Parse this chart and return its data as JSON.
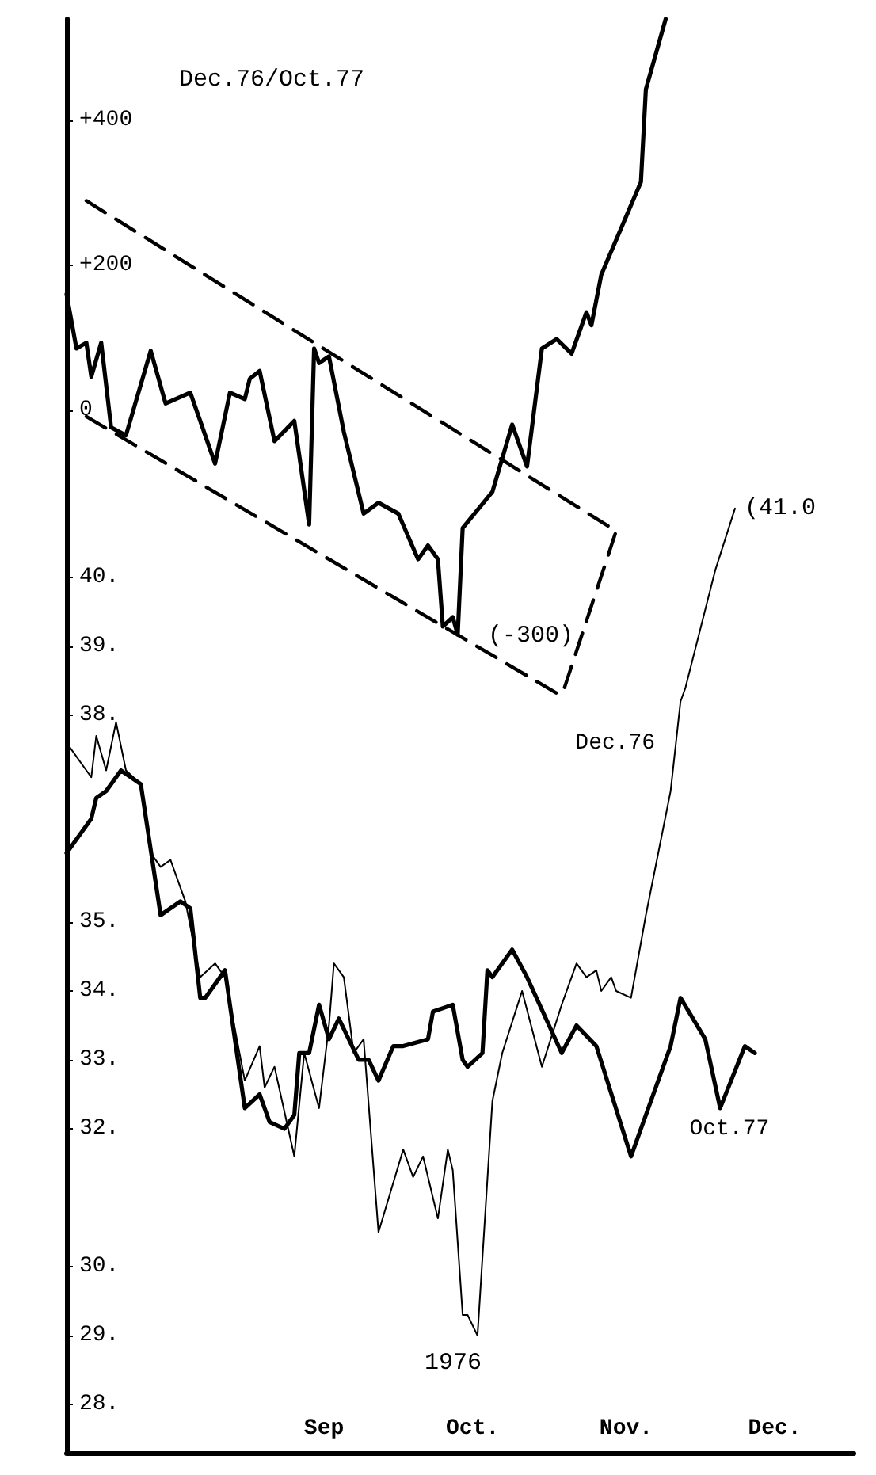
{
  "chart_data": {
    "type": "line",
    "title": "Dec.76/Oct.77",
    "annotations": [
      "(-300)",
      "1976",
      {
        "text": "(41.0",
        "x": "1976-12-07",
        "y": 41
      }
    ],
    "xlim": [
      "1976-07-25",
      "1976-12-31"
    ],
    "xticks": [
      {
        "value": "1976-09-15",
        "label": "Sep"
      },
      {
        "value": "1976-10-15",
        "label": "Oct."
      },
      {
        "value": "1976-11-15",
        "label": "Nov."
      },
      {
        "value": "1976-12-15",
        "label": "Dec."
      }
    ],
    "ylim": [
      27.3,
      48.1
    ],
    "yticks": [
      {
        "value": 28,
        "label": "28."
      },
      {
        "value": 29,
        "label": "29."
      },
      {
        "value": 30,
        "label": "30."
      },
      {
        "value": 32,
        "label": "32."
      },
      {
        "value": 33,
        "label": "33."
      },
      {
        "value": 34,
        "label": "34."
      },
      {
        "value": 35,
        "label": "35."
      },
      {
        "value": 38,
        "label": "38."
      },
      {
        "value": 39,
        "label": "39."
      },
      {
        "value": 40,
        "label": "40."
      }
    ],
    "y2lim": [
      -1440,
      540
    ],
    "y2ticks": [
      {
        "value": 0,
        "label": "0"
      },
      {
        "value": 200,
        "label": "+200"
      },
      {
        "value": 400,
        "label": "+400"
      }
    ],
    "grid": false,
    "legend": false,
    "marker": "none",
    "series": [
      {
        "axis": "y2",
        "color": "#000000",
        "x": [
          "1976-07-25",
          "1976-07-27",
          "1976-07-29",
          "1976-07-30",
          "1976-08-01",
          "1976-08-03",
          "1976-08-06",
          "1976-08-11",
          "1976-08-14",
          "1976-08-19",
          "1976-08-24",
          "1976-08-27",
          "1976-08-30",
          "1976-08-31",
          "1976-09-02",
          "1976-09-05",
          "1976-09-09",
          "1976-09-12",
          "1976-09-13",
          "1976-09-14",
          "1976-09-16",
          "1976-09-19",
          "1976-09-23",
          "1976-09-26",
          "1976-09-30",
          "1976-10-04",
          "1976-10-06",
          "1976-10-08",
          "1976-10-09",
          "1976-10-11",
          "1976-10-12",
          "1976-10-13",
          "1976-10-19",
          "1976-10-23",
          "1976-10-26",
          "1976-10-29",
          "1976-11-01",
          "1976-11-04",
          "1976-11-07",
          "1976-11-08",
          "1976-11-10",
          "1976-11-18",
          "1976-11-19",
          "1976-11-23"
        ],
        "values": [
          160,
          85,
          93,
          46,
          93,
          -24,
          -35,
          82,
          9,
          24,
          -74,
          24,
          15,
          43,
          54,
          -43,
          -15,
          -158,
          85,
          65,
          74,
          -30,
          -143,
          -128,
          -143,
          -206,
          -187,
          -206,
          -299,
          -286,
          -310,
          -163,
          -113,
          -20,
          -78,
          85,
          98,
          78,
          135,
          117,
          187,
          315,
          443,
          540
        ]
      },
      {
        "axis": "y2",
        "color": "#000000",
        "line_style": "dashed",
        "x": [
          "1976-07-29",
          "1976-11-13",
          "1976-11-02"
        ],
        "values": [
          289,
          -167,
          -395
        ]
      },
      {
        "axis": "y2",
        "color": "#000000",
        "line_style": "dashed",
        "x": [
          "1976-07-29",
          "1976-11-02"
        ],
        "values": [
          -9,
          -395
        ]
      },
      {
        "name": "Dec.76",
        "color": "#000000",
        "x": [
          "1976-07-25",
          "1976-07-30",
          "1976-07-31",
          "1976-08-02",
          "1976-08-04",
          "1976-08-06",
          "1976-08-09",
          "1976-08-11",
          "1976-08-13",
          "1976-08-15",
          "1976-08-18",
          "1976-08-21",
          "1976-08-24",
          "1976-08-26",
          "1976-08-30",
          "1976-09-02",
          "1976-09-03",
          "1976-09-05",
          "1976-09-09",
          "1976-09-11",
          "1976-09-14",
          "1976-09-16",
          "1976-09-17",
          "1976-09-19",
          "1976-09-21",
          "1976-09-23",
          "1976-09-26",
          "1976-10-01",
          "1976-10-03",
          "1976-10-05",
          "1976-10-08",
          "1976-10-10",
          "1976-10-11",
          "1976-10-13",
          "1976-10-14",
          "1976-10-16",
          "1976-10-19",
          "1976-10-21",
          "1976-10-25",
          "1976-10-29",
          "1976-11-02",
          "1976-11-05",
          "1976-11-07",
          "1976-11-09",
          "1976-11-10",
          "1976-11-12",
          "1976-11-13",
          "1976-11-16",
          "1976-11-19",
          "1976-11-24",
          "1976-11-26",
          "1976-11-27",
          "1976-12-03",
          "1976-12-07"
        ],
        "values": [
          37.6,
          37.1,
          37.7,
          37.2,
          37.9,
          37.2,
          37.0,
          36.0,
          35.8,
          35.9,
          35.3,
          34.2,
          34.4,
          34.2,
          32.7,
          33.2,
          32.6,
          32.9,
          31.6,
          33.1,
          32.3,
          33.5,
          34.4,
          34.2,
          33.1,
          33.3,
          30.5,
          31.7,
          31.3,
          31.6,
          30.7,
          31.7,
          31.4,
          29.3,
          29.3,
          29.0,
          32.4,
          33.1,
          34.0,
          32.9,
          33.8,
          34.4,
          34.2,
          34.3,
          34.0,
          34.2,
          34.0,
          33.9,
          35.1,
          36.9,
          38.2,
          38.4,
          40.1,
          41.0
        ]
      },
      {
        "name": "Oct.77",
        "color": "#000000",
        "x": [
          "1976-07-25",
          "1976-07-26",
          "1976-07-30",
          "1976-07-31",
          "1976-08-02",
          "1976-08-05",
          "1976-08-09",
          "1976-08-13",
          "1976-08-17",
          "1976-08-19",
          "1976-08-21",
          "1976-08-22",
          "1976-08-26",
          "1976-08-30",
          "1976-09-02",
          "1976-09-04",
          "1976-09-07",
          "1976-09-09",
          "1976-09-10",
          "1976-09-12",
          "1976-09-14",
          "1976-09-16",
          "1976-09-18",
          "1976-09-22",
          "1976-09-24",
          "1976-09-26",
          "1976-09-29",
          "1976-10-01",
          "1976-10-06",
          "1976-10-07",
          "1976-10-11",
          "1976-10-13",
          "1976-10-14",
          "1976-10-17",
          "1976-10-18",
          "1976-10-19",
          "1976-10-23",
          "1976-10-26",
          "1976-11-02",
          "1976-11-05",
          "1976-11-09",
          "1976-11-16",
          "1976-11-24",
          "1976-11-26",
          "1976-12-01",
          "1976-12-04",
          "1976-12-09",
          "1976-12-11"
        ],
        "values": [
          36.0,
          36.1,
          36.5,
          36.8,
          36.9,
          37.2,
          37.0,
          35.1,
          35.3,
          35.2,
          33.9,
          33.9,
          34.3,
          32.3,
          32.5,
          32.1,
          32.0,
          32.2,
          33.1,
          33.1,
          33.8,
          33.3,
          33.6,
          33.0,
          33.0,
          32.7,
          33.2,
          33.2,
          33.3,
          33.7,
          33.8,
          33.0,
          32.9,
          33.1,
          34.3,
          34.2,
          34.6,
          34.2,
          33.1,
          33.5,
          33.2,
          31.6,
          33.2,
          33.9,
          33.3,
          32.3,
          33.2,
          33.1
        ]
      }
    ]
  }
}
